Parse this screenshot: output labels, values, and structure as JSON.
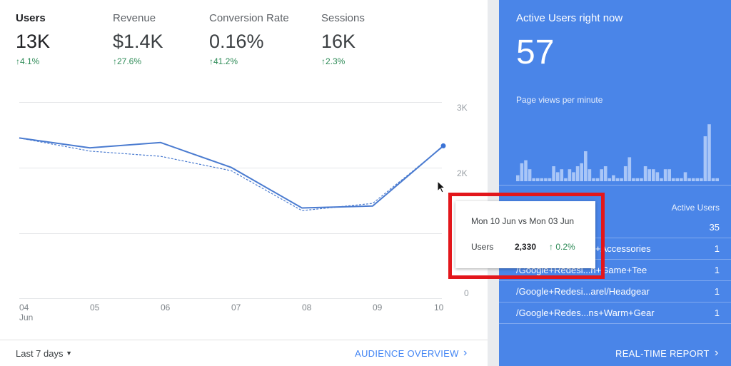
{
  "metrics": [
    {
      "label": "Users",
      "value": "13K",
      "change": "4.1%"
    },
    {
      "label": "Revenue",
      "value": "$1.4K",
      "change": "27.6%"
    },
    {
      "label": "Conversion Rate",
      "value": "0.16%",
      "change": "41.2%"
    },
    {
      "label": "Sessions",
      "value": "16K",
      "change": "2.3%"
    }
  ],
  "chart_data": {
    "type": "line",
    "title": "",
    "x": [
      "04 Jun",
      "05",
      "06",
      "07",
      "08",
      "09",
      "10"
    ],
    "series": [
      {
        "values": [
          2450,
          2300,
          2380,
          2000,
          1380,
          1410,
          2330
        ]
      },
      {
        "values": [
          2450,
          2250,
          2170,
          1950,
          1340,
          1450,
          2320
        ]
      }
    ],
    "y_ticks": [
      "3K",
      "2K",
      "0"
    ],
    "ylim": [
      0,
      3000
    ]
  },
  "x_labels": [
    {
      "top": "04",
      "bottom": "Jun"
    },
    {
      "top": "05",
      "bottom": ""
    },
    {
      "top": "06",
      "bottom": ""
    },
    {
      "top": "07",
      "bottom": ""
    },
    {
      "top": "08",
      "bottom": ""
    },
    {
      "top": "09",
      "bottom": ""
    },
    {
      "top": "10",
      "bottom": ""
    }
  ],
  "footer": {
    "date_range": "Last 7 days",
    "audience_link": "AUDIENCE OVERVIEW"
  },
  "tooltip": {
    "date": "Mon 10 Jun vs Mon 03 Jun",
    "metric": "Users",
    "value": "2,330",
    "change": "0.2%"
  },
  "realtime": {
    "title": "Active Users right now",
    "count": "57",
    "subtitle": "Page views per minute",
    "column_header": "Active Users",
    "bars": [
      0.1,
      0.3,
      0.35,
      0.2,
      0.05,
      0.05,
      0.05,
      0.05,
      0.05,
      0.25,
      0.15,
      0.2,
      0.05,
      0.2,
      0.15,
      0.25,
      0.3,
      0.5,
      0.2,
      0.05,
      0.05,
      0.2,
      0.25,
      0.05,
      0.1,
      0.05,
      0.05,
      0.25,
      0.4,
      0.05,
      0.05,
      0.05,
      0.25,
      0.2,
      0.2,
      0.15,
      0.05,
      0.2,
      0.2,
      0.05,
      0.05,
      0.05,
      0.15,
      0.05,
      0.05,
      0.05,
      0.05,
      0.75,
      0.95,
      0.05,
      0.05
    ],
    "rows": [
      {
        "page": "",
        "count": "35"
      },
      {
        "page": "/Google+Redesi...c+Accessories",
        "count": "1"
      },
      {
        "page": "/Google+Redesi...n+Game+Tee",
        "count": "1"
      },
      {
        "page": "/Google+Redesi...arel/Headgear",
        "count": "1"
      },
      {
        "page": "/Google+Redes...ns+Warm+Gear",
        "count": "1"
      }
    ],
    "link": "REAL-TIME REPORT"
  }
}
